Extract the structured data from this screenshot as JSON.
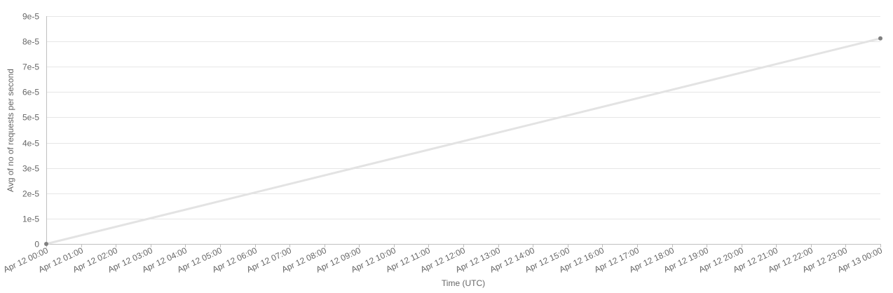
{
  "chart_data": {
    "type": "line",
    "title": "",
    "xlabel": "Time (UTC)",
    "ylabel": "Avg of no of requests per second",
    "x_ticks": [
      "Apr 12 00:00",
      "Apr 12 01:00",
      "Apr 12 02:00",
      "Apr 12 03:00",
      "Apr 12 04:00",
      "Apr 12 05:00",
      "Apr 12 06:00",
      "Apr 12 07:00",
      "Apr 12 08:00",
      "Apr 12 09:00",
      "Apr 12 10:00",
      "Apr 12 11:00",
      "Apr 12 12:00",
      "Apr 12 13:00",
      "Apr 12 14:00",
      "Apr 12 15:00",
      "Apr 12 16:00",
      "Apr 12 17:00",
      "Apr 12 18:00",
      "Apr 12 19:00",
      "Apr 12 20:00",
      "Apr 12 21:00",
      "Apr 12 22:00",
      "Apr 12 23:00",
      "Apr 13 00:00"
    ],
    "y_ticks": [
      "0",
      "1e-5",
      "2e-5",
      "3e-5",
      "4e-5",
      "5e-5",
      "6e-5",
      "7e-5",
      "8e-5",
      "9e-5"
    ],
    "ylim": [
      0,
      9e-05
    ],
    "grid": true,
    "legend": "none",
    "series": [
      {
        "x": [
          "Apr 12 00:00",
          "Apr 13 00:00"
        ],
        "values": [
          0,
          8.12e-05
        ],
        "line_color": "#e3e3e3",
        "point_color": "#808080"
      }
    ]
  }
}
